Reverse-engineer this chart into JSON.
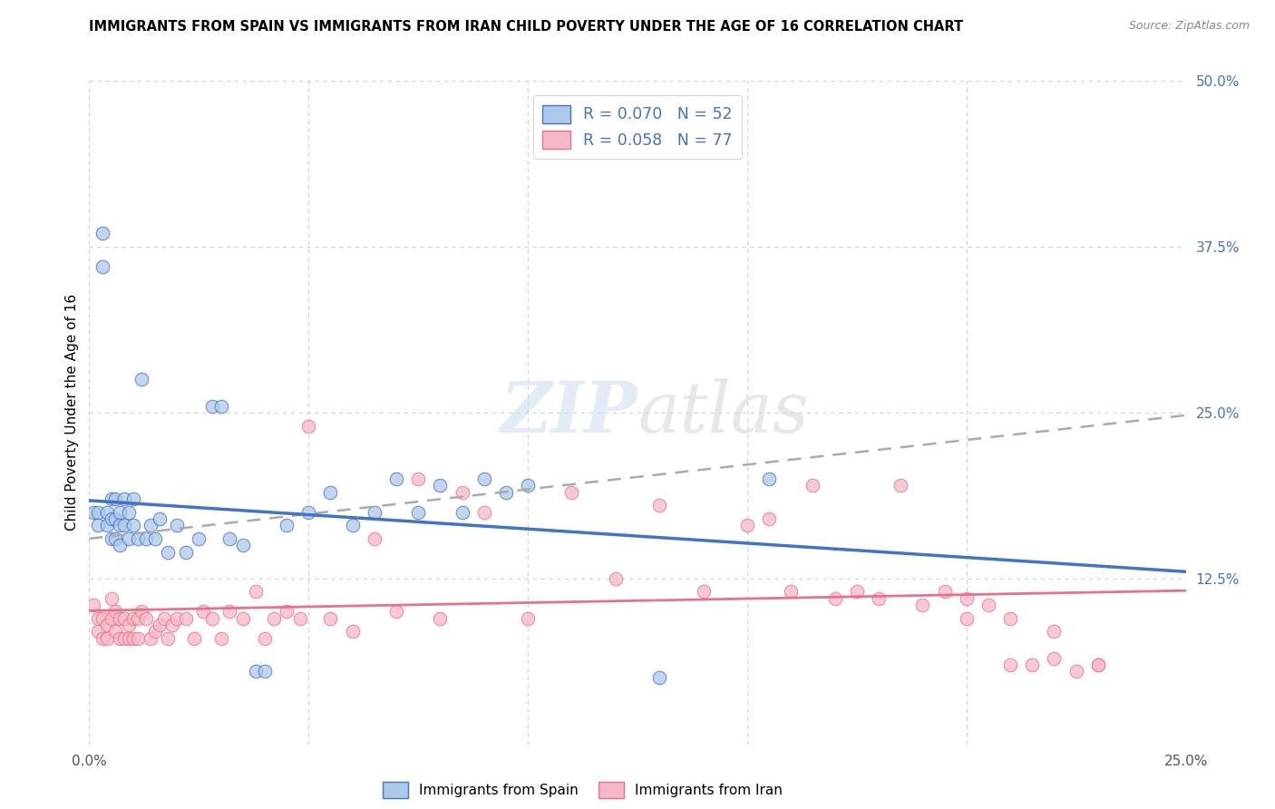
{
  "title": "IMMIGRANTS FROM SPAIN VS IMMIGRANTS FROM IRAN CHILD POVERTY UNDER THE AGE OF 16 CORRELATION CHART",
  "source": "Source: ZipAtlas.com",
  "ylabel": "Child Poverty Under the Age of 16",
  "xlim": [
    0.0,
    0.25
  ],
  "ylim": [
    0.0,
    0.5
  ],
  "xticks": [
    0.0,
    0.05,
    0.1,
    0.15,
    0.2,
    0.25
  ],
  "yticks": [
    0.0,
    0.125,
    0.25,
    0.375,
    0.5
  ],
  "xticklabels": [
    "0.0%",
    "",
    "",
    "",
    "",
    "25.0%"
  ],
  "yticklabels": [
    "",
    "12.5%",
    "25.0%",
    "37.5%",
    "50.0%"
  ],
  "spain_R": 0.07,
  "spain_N": 52,
  "iran_R": 0.058,
  "iran_N": 77,
  "legend_labels": [
    "Immigrants from Spain",
    "Immigrants from Iran"
  ],
  "color_spain": "#adc8e8",
  "color_iran": "#f5b8c8",
  "edge_color_spain": "#4472c4",
  "edge_color_iran": "#e8708a",
  "line_color_spain": "#4472c4",
  "line_color_iran": "#e8708a",
  "dash_color": "#aaaaaa",
  "spain_x": [
    0.001,
    0.002,
    0.002,
    0.003,
    0.003,
    0.004,
    0.004,
    0.005,
    0.005,
    0.005,
    0.006,
    0.006,
    0.006,
    0.007,
    0.007,
    0.007,
    0.008,
    0.008,
    0.009,
    0.009,
    0.01,
    0.01,
    0.011,
    0.012,
    0.013,
    0.014,
    0.015,
    0.016,
    0.018,
    0.02,
    0.022,
    0.025,
    0.028,
    0.03,
    0.032,
    0.035,
    0.038,
    0.04,
    0.045,
    0.05,
    0.055,
    0.06,
    0.065,
    0.07,
    0.075,
    0.08,
    0.085,
    0.09,
    0.095,
    0.1,
    0.13,
    0.155
  ],
  "spain_y": [
    0.175,
    0.175,
    0.165,
    0.385,
    0.36,
    0.175,
    0.165,
    0.185,
    0.17,
    0.155,
    0.185,
    0.17,
    0.155,
    0.175,
    0.165,
    0.15,
    0.185,
    0.165,
    0.175,
    0.155,
    0.185,
    0.165,
    0.155,
    0.275,
    0.155,
    0.165,
    0.155,
    0.17,
    0.145,
    0.165,
    0.145,
    0.155,
    0.255,
    0.255,
    0.155,
    0.15,
    0.055,
    0.055,
    0.165,
    0.175,
    0.19,
    0.165,
    0.175,
    0.2,
    0.175,
    0.195,
    0.175,
    0.2,
    0.19,
    0.195,
    0.05,
    0.2
  ],
  "iran_x": [
    0.001,
    0.002,
    0.002,
    0.003,
    0.003,
    0.004,
    0.004,
    0.005,
    0.005,
    0.006,
    0.006,
    0.007,
    0.007,
    0.008,
    0.008,
    0.009,
    0.009,
    0.01,
    0.01,
    0.011,
    0.011,
    0.012,
    0.013,
    0.014,
    0.015,
    0.016,
    0.017,
    0.018,
    0.019,
    0.02,
    0.022,
    0.024,
    0.026,
    0.028,
    0.03,
    0.032,
    0.035,
    0.038,
    0.04,
    0.042,
    0.045,
    0.048,
    0.05,
    0.055,
    0.06,
    0.065,
    0.07,
    0.075,
    0.08,
    0.085,
    0.09,
    0.1,
    0.11,
    0.12,
    0.13,
    0.14,
    0.15,
    0.155,
    0.16,
    0.165,
    0.17,
    0.175,
    0.18,
    0.185,
    0.19,
    0.195,
    0.2,
    0.205,
    0.21,
    0.215,
    0.22,
    0.225,
    0.23,
    0.2,
    0.21,
    0.22,
    0.23
  ],
  "iran_y": [
    0.105,
    0.095,
    0.085,
    0.095,
    0.08,
    0.09,
    0.08,
    0.11,
    0.095,
    0.085,
    0.1,
    0.08,
    0.095,
    0.095,
    0.08,
    0.09,
    0.08,
    0.095,
    0.08,
    0.095,
    0.08,
    0.1,
    0.095,
    0.08,
    0.085,
    0.09,
    0.095,
    0.08,
    0.09,
    0.095,
    0.095,
    0.08,
    0.1,
    0.095,
    0.08,
    0.1,
    0.095,
    0.115,
    0.08,
    0.095,
    0.1,
    0.095,
    0.24,
    0.095,
    0.085,
    0.155,
    0.1,
    0.2,
    0.095,
    0.19,
    0.175,
    0.095,
    0.19,
    0.125,
    0.18,
    0.115,
    0.165,
    0.17,
    0.115,
    0.195,
    0.11,
    0.115,
    0.11,
    0.195,
    0.105,
    0.115,
    0.095,
    0.105,
    0.06,
    0.06,
    0.065,
    0.055,
    0.06,
    0.11,
    0.095,
    0.085,
    0.06
  ]
}
